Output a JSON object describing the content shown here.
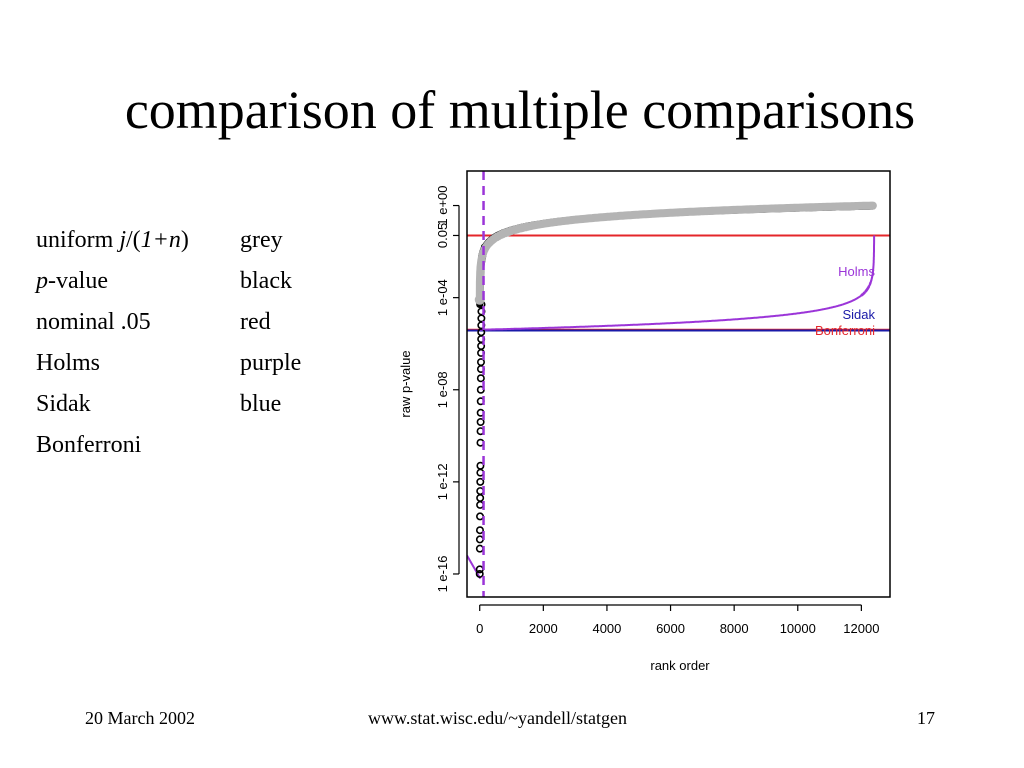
{
  "slide": {
    "title": "comparison of multiple comparisons"
  },
  "legend": {
    "rows": [
      {
        "pre": "uniform ",
        "it1": "j",
        "mid1": "/(",
        "it2": "1+n",
        "mid2": ")",
        "color": "grey"
      },
      {
        "pre": "",
        "it1": "p",
        "mid1": "-value",
        "it2": "",
        "mid2": "",
        "color": "black"
      },
      {
        "pre": "nominal .05",
        "it1": "",
        "mid1": "",
        "it2": "",
        "mid2": "",
        "color": "red"
      },
      {
        "pre": "Holms",
        "it1": "",
        "mid1": "",
        "it2": "",
        "mid2": "",
        "color": "purple"
      },
      {
        "pre": "Sidak",
        "it1": "",
        "mid1": "",
        "it2": "",
        "mid2": "",
        "color": "blue"
      },
      {
        "pre": "Bonferroni",
        "it1": "",
        "mid1": "",
        "it2": "",
        "mid2": "",
        "color": ""
      }
    ]
  },
  "footer": {
    "date": "20 March 2002",
    "url": "www.stat.wisc.edu/~yandell/statgen",
    "page": "17"
  },
  "chart_data": {
    "type": "scatter",
    "xlabel": "rank order",
    "ylabel": "raw p-value",
    "xlim": [
      -400,
      12900
    ],
    "ylim_log10": [
      -17,
      1.5
    ],
    "y_scale": "log",
    "x_ticks": [
      0,
      2000,
      4000,
      6000,
      8000,
      10000,
      12000
    ],
    "x_tick_labels": [
      "0",
      "2000",
      "4000",
      "6000",
      "8000",
      "10000",
      "12000"
    ],
    "y_ticks_log10": [
      0,
      -1.3,
      -4,
      -8,
      -12,
      -16
    ],
    "y_tick_labels": [
      "1 e+00",
      "0.05",
      "1 e-04",
      "1 e-08",
      "1 e-12",
      "1 e-16"
    ],
    "n": 12400,
    "series": [
      {
        "name": "grey",
        "color": "#b4b4b4",
        "kind": "uniform j/(1+n)"
      },
      {
        "name": "black",
        "color": "#000000",
        "kind": "p-value"
      },
      {
        "name": "red",
        "color": "#e4262a",
        "kind": "nominal .05",
        "value": 0.05
      },
      {
        "name": "Holms",
        "color": "#9b35d8",
        "kind": "holm"
      },
      {
        "name": "Sidak",
        "color": "#1a1aa8",
        "kind": "sidak"
      },
      {
        "name": "Bonferroni",
        "color": "#e4262a",
        "kind": "bonferroni"
      }
    ],
    "annotations": {
      "holms": "Holms",
      "sidak": "Sidak",
      "bonferroni": "Bonferroni"
    },
    "dashed_cutoff_rank": 120,
    "black_lowest_points_log10": [
      -16,
      -15.8,
      -14.9,
      -14.5,
      -14.1,
      -13.5,
      -13.0,
      -12.7,
      -12.4,
      -12.0,
      -11.6,
      -11.3,
      -10.3,
      -9.8,
      -9.4,
      -9.0,
      -8.5,
      -8.0,
      -7.5,
      -7.1,
      -6.8,
      -6.4,
      -6.1,
      -5.8,
      -5.5,
      -5.2,
      -4.9,
      -4.6,
      -4.3
    ]
  }
}
